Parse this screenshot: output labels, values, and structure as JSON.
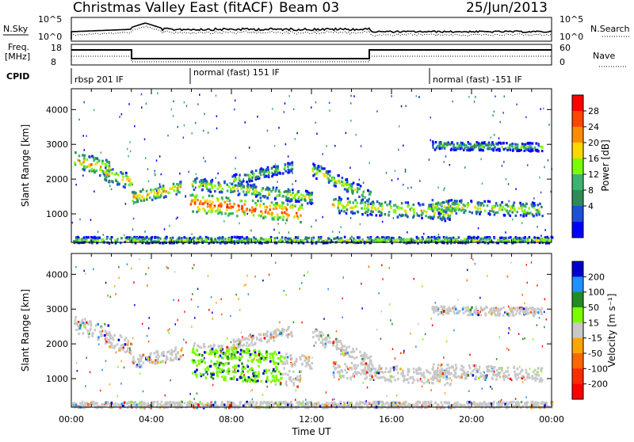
{
  "header": {
    "title": "Christmas Valley East (fitACF)",
    "beam": "Beam 03",
    "date": "25/Jun/2013"
  },
  "panels": {
    "nsky": {
      "label": "N.Sky",
      "yticks": [
        "10^5",
        "10^0"
      ],
      "right_label": "N.Search",
      "right_yticks": [
        "10^5",
        "10^0"
      ]
    },
    "freq": {
      "label_line1": "Freq.",
      "label_line2": "[MHz]",
      "yticks": [
        "18",
        "8"
      ],
      "right_label": "Nave",
      "right_yticks": [
        "60",
        "0"
      ]
    },
    "cpid": {
      "label": "CPID",
      "segments": [
        "rbsp 201 IF",
        "normal (fast) 151 IF",
        "normal (fast) -151 IF"
      ]
    }
  },
  "chart_data": [
    {
      "type": "heatmap",
      "name": "power",
      "ylabel": "Slant Range [km]",
      "yticks": [
        1000,
        2000,
        3000,
        4000
      ],
      "ylim": [
        180,
        4600
      ],
      "xlabel": "Time UT",
      "xticks": [
        "00:00",
        "04:00",
        "08:00",
        "12:00",
        "16:00",
        "20:00",
        "00:00"
      ],
      "colorbar": {
        "label": "Power [dB]",
        "ticks": [
          "28",
          "24",
          "20",
          "16",
          "12",
          "8",
          "4"
        ],
        "colors": [
          "#ff0000",
          "#ff4500",
          "#ff8c00",
          "#ffd700",
          "#7cfc00",
          "#3cb371",
          "#2e8b57",
          "#1e4fd8",
          "#0000ff"
        ]
      }
    },
    {
      "type": "heatmap",
      "name": "velocity",
      "ylabel": "Slant Range [km]",
      "yticks": [
        1000,
        2000,
        3000,
        4000
      ],
      "ylim": [
        180,
        4600
      ],
      "xlabel": "Time UT",
      "xticks": [
        "00:00",
        "04:00",
        "08:00",
        "12:00",
        "16:00",
        "20:00",
        "00:00"
      ],
      "colorbar": {
        "label": "Velocity [m s⁻¹]",
        "ticks": [
          "200",
          "100",
          "50",
          "15",
          "-15",
          "-50",
          "-100",
          "-200"
        ],
        "colors": [
          "#0000cd",
          "#1e90ff",
          "#228b22",
          "#7cfc00",
          "#c8c8c8",
          "#ffa500",
          "#ff6600",
          "#ff2a00",
          "#ff0000"
        ]
      }
    }
  ]
}
